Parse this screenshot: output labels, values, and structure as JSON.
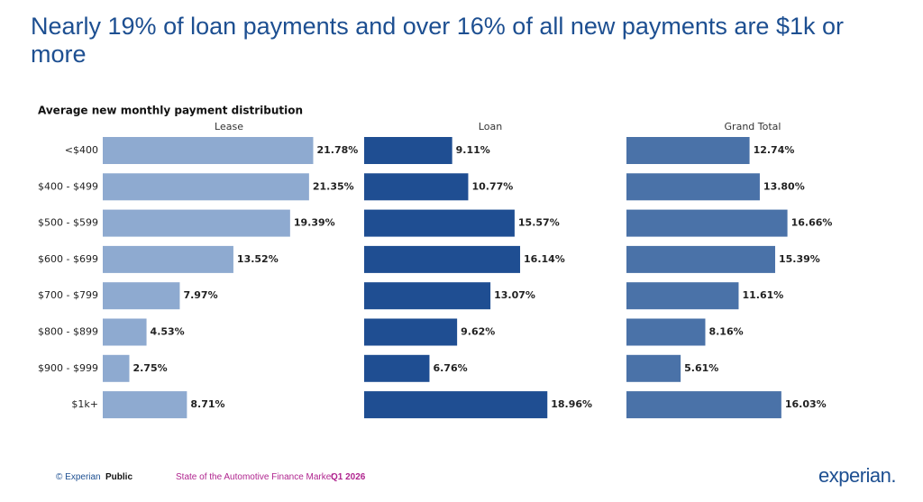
{
  "headline": "Nearly 19% of loan payments and over 16% of all new payments are $1k or more",
  "chart_data": {
    "type": "bar",
    "orientation": "horizontal",
    "layout": "small-multiples",
    "title": "Average new monthly payment distribution",
    "categories": [
      "<$400",
      "$400 - $499",
      "$500 - $599",
      "$600 - $699",
      "$700 - $799",
      "$800 - $899",
      "$900 - $999",
      "$1k+"
    ],
    "series": [
      {
        "name": "Lease",
        "color": "#8eaad0",
        "values": [
          21.78,
          21.35,
          19.39,
          13.52,
          7.97,
          4.53,
          2.75,
          8.71
        ],
        "value_labels": [
          "21.78%",
          "21.35%",
          "19.39%",
          "13.52%",
          "7.97%",
          "4.53%",
          "2.75%",
          "8.71%"
        ]
      },
      {
        "name": "Loan",
        "color": "#1f4e92",
        "values": [
          9.11,
          10.77,
          15.57,
          16.14,
          13.07,
          9.62,
          6.76,
          18.96
        ],
        "value_labels": [
          "9.11%",
          "10.77%",
          "15.57%",
          "16.14%",
          "13.07%",
          "9.62%",
          "6.76%",
          "18.96%"
        ]
      },
      {
        "name": "Grand Total",
        "color": "#4a72a8",
        "values": [
          12.74,
          13.8,
          16.66,
          15.39,
          11.61,
          8.16,
          5.61,
          16.03
        ],
        "value_labels": [
          "12.74%",
          "13.80%",
          "16.66%",
          "15.39%",
          "11.61%",
          "8.16%",
          "5.61%",
          "16.03%"
        ]
      }
    ]
  },
  "footer": {
    "copyright": "© Experian",
    "classification": "Public",
    "report": "State of the Automotive Finance Market",
    "period": "Q1 2026",
    "logo": "experian."
  }
}
